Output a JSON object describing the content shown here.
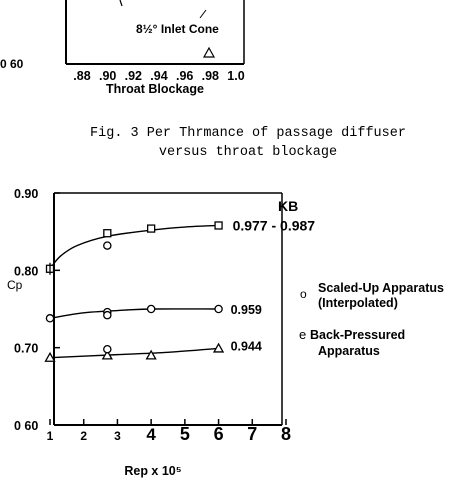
{
  "top_chart": {
    "annotation": "8½° Inlet Cone",
    "y_tick": "0 60",
    "x_ticks": [
      ".88",
      ".90",
      ".92",
      ".94",
      ".96",
      ".98",
      "1.0"
    ],
    "xlabel": "Throat Blockage"
  },
  "caption": {
    "line1": "Fig. 3 Per Thrmance of passage diffuser",
    "line2": "versus throat blockage"
  },
  "chart_data": {
    "type": "scatter",
    "title": "",
    "xlabel": "Rep x 10⁵",
    "ylabel": "Cp",
    "xlim": [
      1,
      8
    ],
    "ylim": [
      0.6,
      0.9
    ],
    "x_ticks": [
      "1",
      "2",
      "3",
      "4",
      "5",
      "6",
      "7",
      "8"
    ],
    "y_ticks": [
      "0 60",
      "0.70",
      "0.80",
      "0.90"
    ],
    "kb_header": "KB",
    "series": [
      {
        "marker": "square",
        "points": [
          [
            1.0,
            0.802
          ],
          [
            2.7,
            0.848
          ],
          [
            4.0,
            0.854
          ],
          [
            6.0,
            0.858
          ]
        ],
        "curve": [
          [
            1.0,
            0.802
          ],
          [
            1.3,
            0.818
          ],
          [
            1.8,
            0.832
          ],
          [
            2.7,
            0.844
          ],
          [
            4.0,
            0.852
          ],
          [
            5.0,
            0.856
          ],
          [
            6.0,
            0.858
          ]
        ],
        "end_label": "0.977 - 0.987"
      },
      {
        "marker": "circle",
        "points": [
          [
            1.0,
            0.738
          ],
          [
            2.7,
            0.746
          ],
          [
            2.7,
            0.742
          ],
          [
            4.0,
            0.75
          ],
          [
            6.0,
            0.75
          ]
        ],
        "curve": [
          [
            1.0,
            0.738
          ],
          [
            2.0,
            0.745
          ],
          [
            3.0,
            0.748
          ],
          [
            4.0,
            0.75
          ],
          [
            6.0,
            0.75
          ]
        ],
        "end_label": "0.959"
      },
      {
        "marker": "triangle",
        "points": [
          [
            1.0,
            0.687
          ],
          [
            2.7,
            0.69
          ],
          [
            4.0,
            0.69
          ],
          [
            6.0,
            0.699
          ]
        ],
        "curve": [
          [
            1.0,
            0.687
          ],
          [
            3.0,
            0.691
          ],
          [
            4.5,
            0.694
          ],
          [
            6.0,
            0.699
          ]
        ],
        "end_label": "0.944"
      }
    ],
    "extra_points": [
      {
        "marker": "circle",
        "x": 2.7,
        "y": 0.832
      },
      {
        "marker": "circle",
        "x": 2.7,
        "y": 0.698
      }
    ],
    "legend": [
      {
        "symbol": "o",
        "text": [
          "Scaled-Up Apparatus",
          "(Interpolated)"
        ]
      },
      {
        "symbol": "e",
        "text": [
          "Back-Pressured",
          "Apparatus"
        ]
      }
    ]
  }
}
